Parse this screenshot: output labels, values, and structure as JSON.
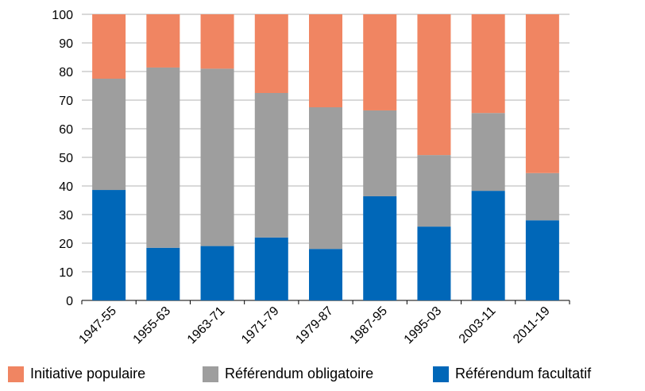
{
  "chart_data": {
    "type": "bar",
    "stacked": true,
    "categories": [
      "1947-55",
      "1955-63",
      "1963-71",
      "1971-79",
      "1979-87",
      "1987-95",
      "1995-03",
      "2003-11",
      "2011-19"
    ],
    "series": [
      {
        "name": "Référendum facultatif",
        "color": "#0067b8",
        "values": [
          38.6,
          18.4,
          19.0,
          22.0,
          18.0,
          36.4,
          25.8,
          38.3,
          28.0
        ]
      },
      {
        "name": "Référendum obligatoire",
        "color": "#9e9e9e",
        "values": [
          38.9,
          63.0,
          62.0,
          50.5,
          49.5,
          30.0,
          25.0,
          27.2,
          16.5
        ]
      },
      {
        "name": "Initiative populaire",
        "color": "#f08562",
        "values": [
          22.5,
          18.6,
          19.0,
          27.5,
          32.5,
          33.6,
          49.2,
          34.5,
          55.5
        ]
      }
    ],
    "y_ticks": [
      "0",
      "10",
      "20",
      "30",
      "40",
      "50",
      "60",
      "70",
      "80",
      "90",
      "100"
    ],
    "ylim": [
      0,
      100
    ],
    "grid": true,
    "legend_position": "bottom",
    "legend_order": [
      "Initiative populaire",
      "Référendum obligatoire",
      "Référendum facultatif"
    ]
  }
}
